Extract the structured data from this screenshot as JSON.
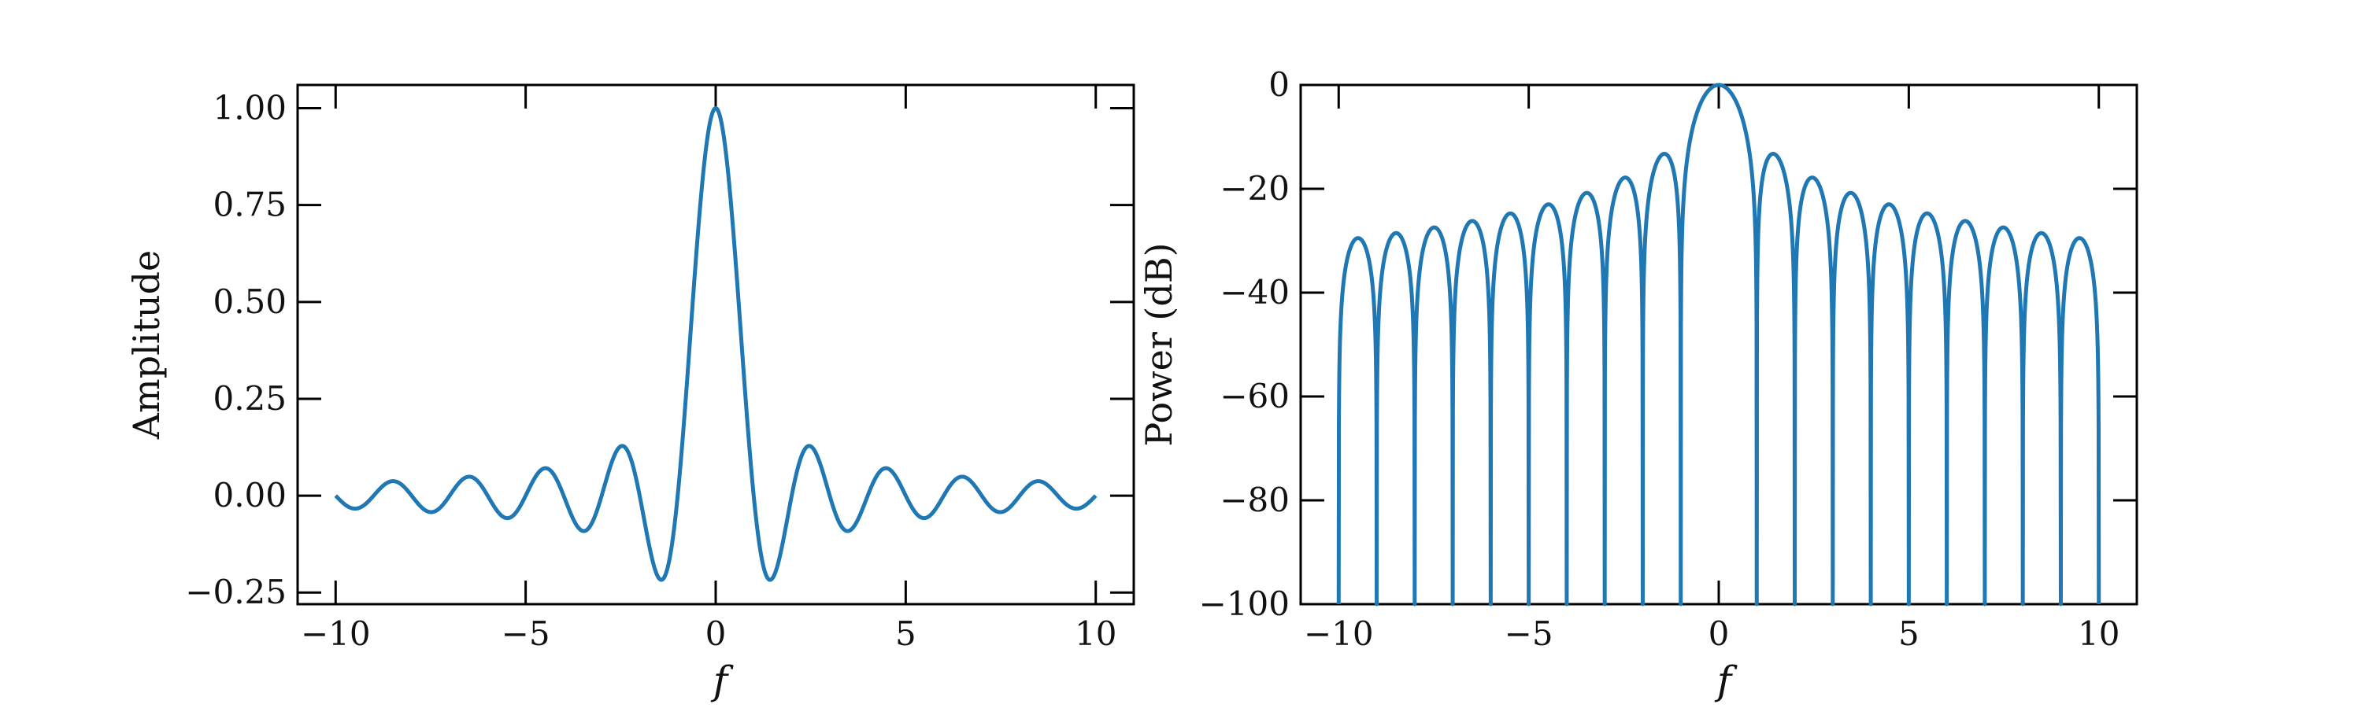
{
  "chart_data": [
    {
      "type": "line",
      "title": "",
      "xlabel": "f",
      "ylabel": "Amplitude",
      "xlim": [
        -11,
        11
      ],
      "ylim": [
        -0.28,
        1.06
      ],
      "xticks": [
        -10,
        -5,
        0,
        5,
        10
      ],
      "xtick_labels": [
        "−10",
        "−5",
        "0",
        "5",
        "10"
      ],
      "yticks": [
        -0.25,
        0.0,
        0.25,
        0.5,
        0.75,
        1.0
      ],
      "ytick_labels": [
        "−0.25",
        "0.00",
        "0.25",
        "0.50",
        "0.75",
        "1.00"
      ],
      "grid": false,
      "series": [
        {
          "function": "sinc",
          "color": "#1f77b4",
          "x_range": [
            -10,
            10
          ]
        }
      ]
    },
    {
      "type": "line",
      "title": "",
      "xlabel": "f",
      "ylabel": "Power (dB)",
      "xlim": [
        -11,
        11
      ],
      "ylim": [
        -100,
        0
      ],
      "xticks": [
        -10,
        -5,
        0,
        5,
        10
      ],
      "xtick_labels": [
        "−10",
        "−5",
        "0",
        "5",
        "10"
      ],
      "yticks": [
        -100,
        -80,
        -60,
        -40,
        -20,
        0
      ],
      "ytick_labels": [
        "−100",
        "−80",
        "−60",
        "−40",
        "−20",
        "0"
      ],
      "grid": false,
      "series": [
        {
          "function": "20*log10(|sinc|)",
          "color": "#1f77b4",
          "x_range": [
            -10,
            10
          ]
        }
      ]
    }
  ]
}
